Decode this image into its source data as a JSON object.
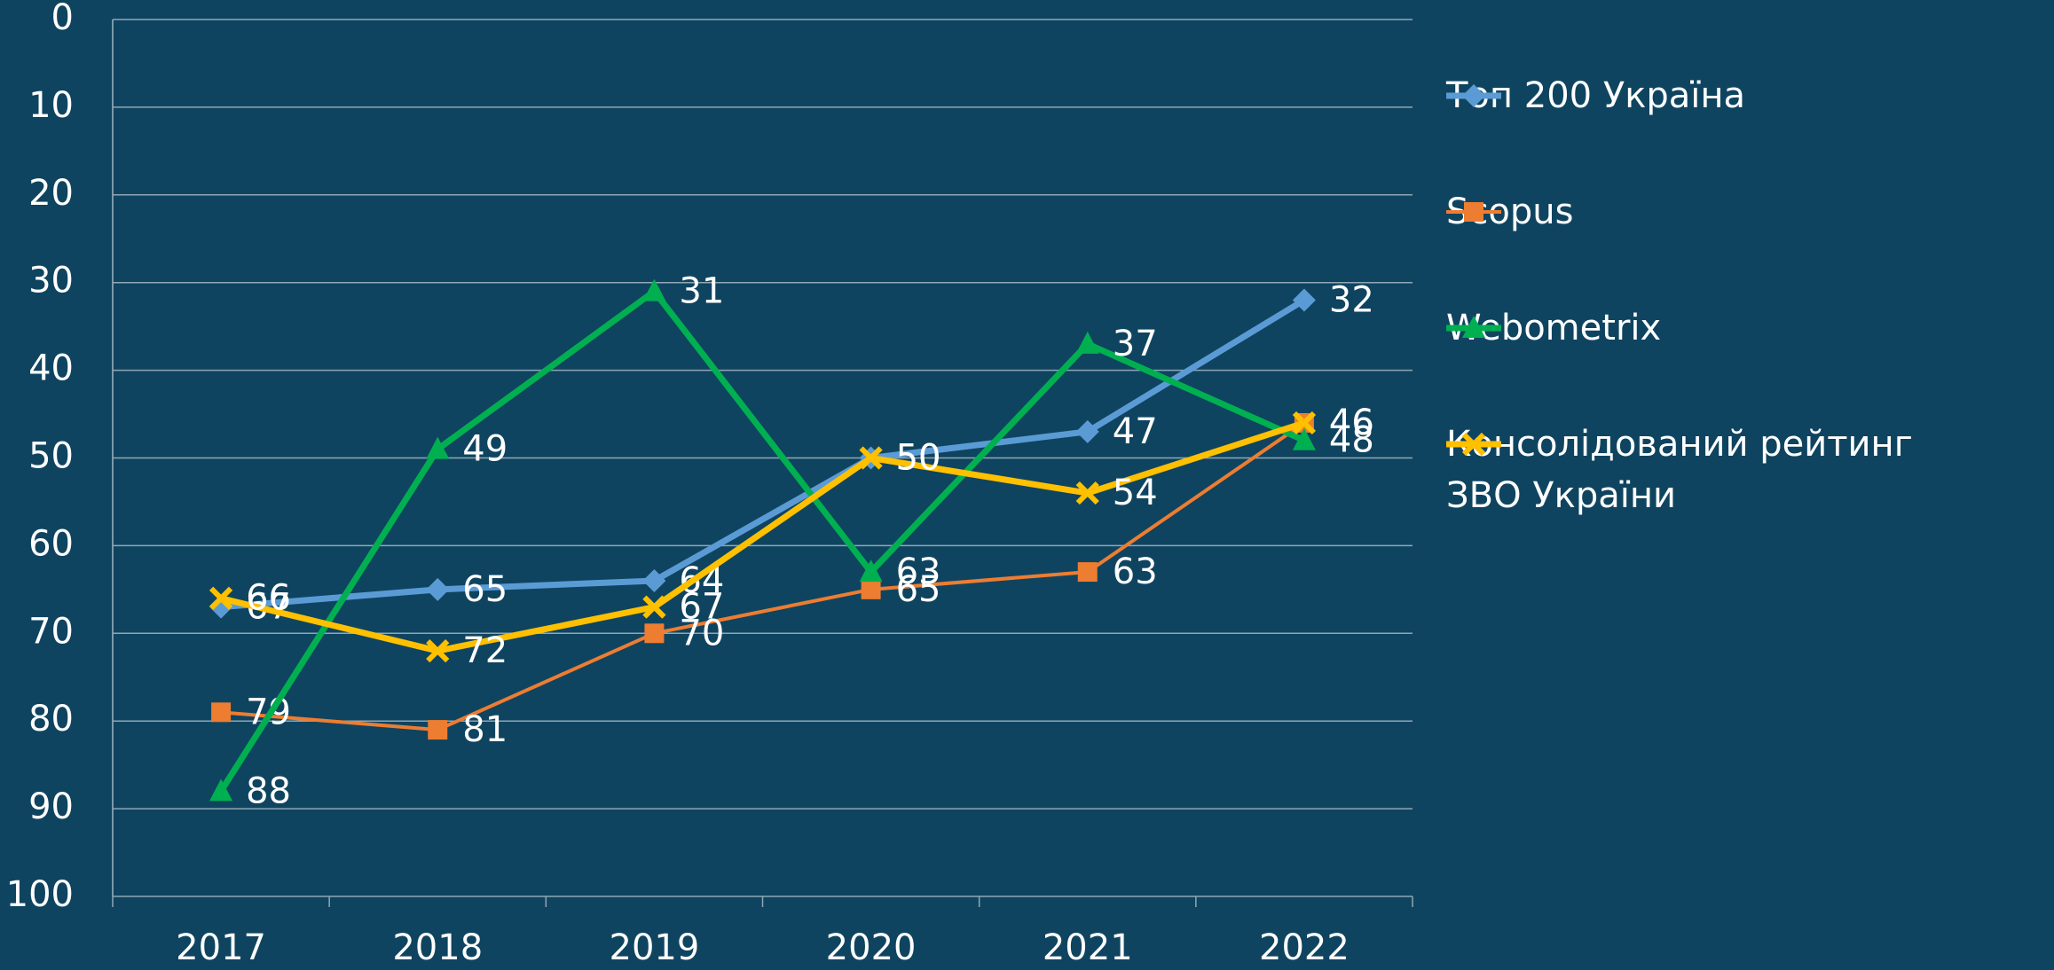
{
  "chart_data": {
    "type": "line",
    "categories": [
      "2017",
      "2018",
      "2019",
      "2020",
      "2021",
      "2022"
    ],
    "ylim": [
      0,
      100
    ],
    "y_reversed": true,
    "yticks": [
      0,
      10,
      20,
      30,
      40,
      50,
      60,
      70,
      80,
      90,
      100
    ],
    "grid": true,
    "legend": "right",
    "series": [
      {
        "name": "Топ 200 Україна",
        "color": "#5b9bd5",
        "marker": "diamond",
        "line_width": 7,
        "values": [
          67,
          65,
          64,
          50,
          47,
          32
        ]
      },
      {
        "name": "Scopus",
        "color": "#ed7d31",
        "marker": "square",
        "line_width": 4,
        "values": [
          79,
          81,
          70,
          65,
          63,
          46
        ]
      },
      {
        "name": "Webometrix",
        "color": "#00b050",
        "marker": "triangle",
        "line_width": 7,
        "values": [
          88,
          49,
          31,
          63,
          37,
          48
        ]
      },
      {
        "name": "Консолідований рейтинг ЗВО України",
        "color": "#ffc000",
        "marker": "x",
        "line_width": 7,
        "values": [
          66,
          72,
          67,
          50,
          54,
          46
        ]
      }
    ]
  }
}
